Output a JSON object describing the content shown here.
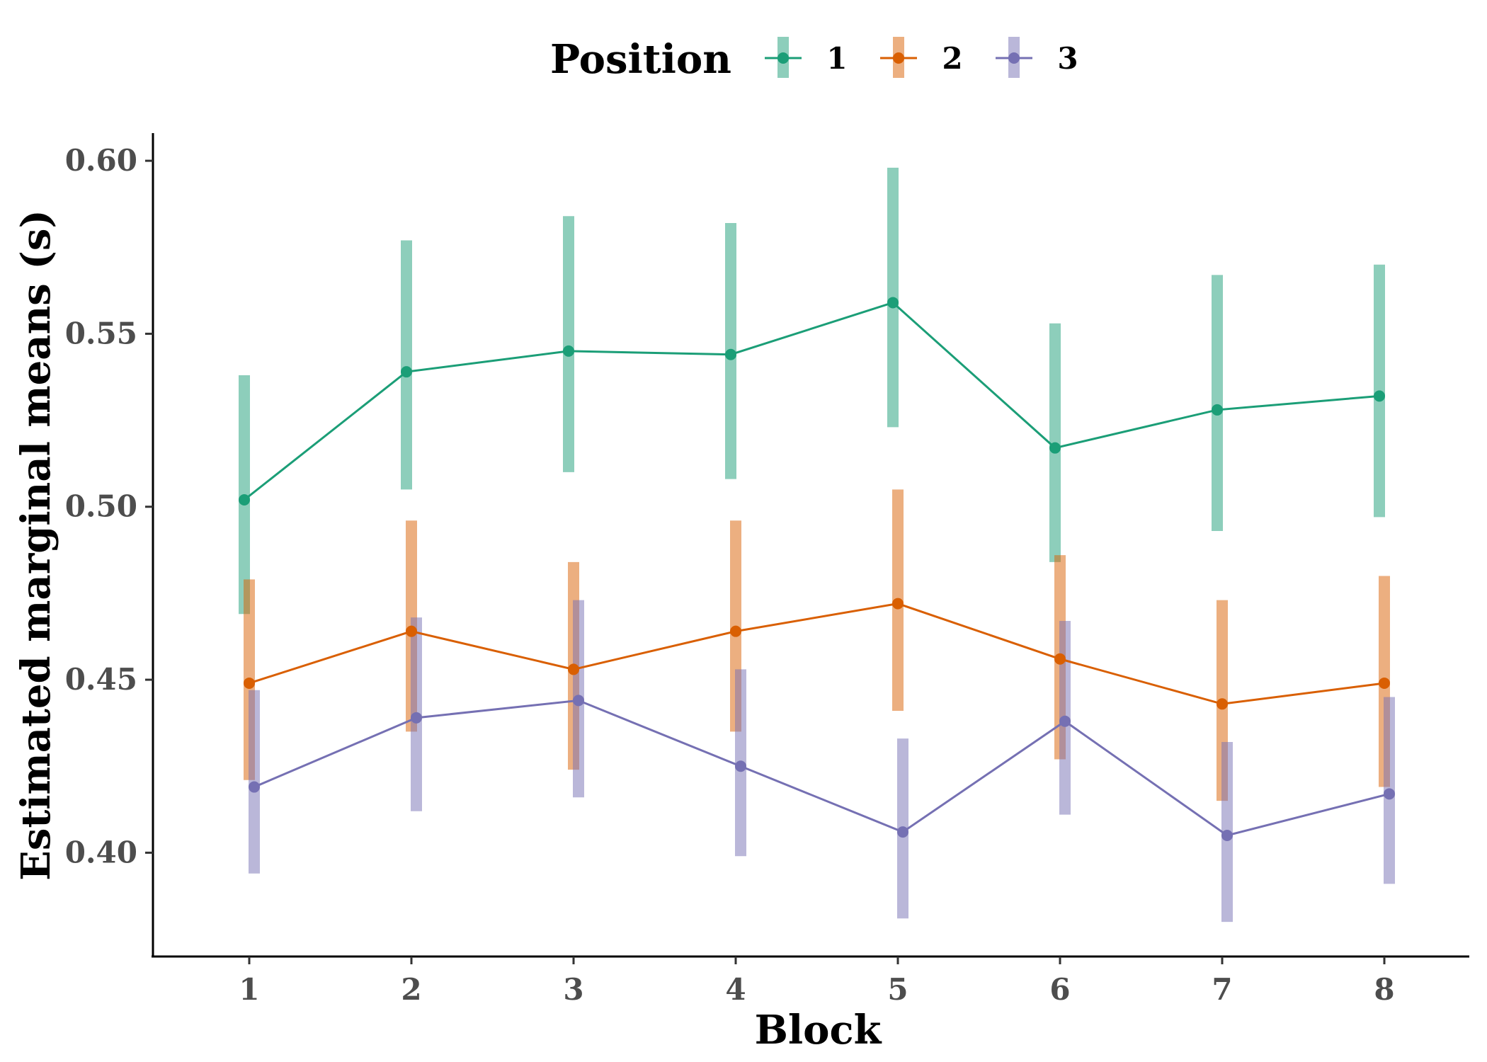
{
  "chart_data": {
    "type": "line",
    "xlabel": "Block",
    "ylabel": "Estimated marginal means (s)",
    "legend_title": "Position",
    "legend_position": "top",
    "grid": false,
    "categories": [
      "1",
      "2",
      "3",
      "4",
      "5",
      "6",
      "7",
      "8"
    ],
    "ylim": [
      0.37,
      0.608
    ],
    "yticks": [
      0.4,
      0.45,
      0.5,
      0.55,
      0.6
    ],
    "ytick_labels": [
      "0.40",
      "0.45",
      "0.50",
      "0.55",
      "0.60"
    ],
    "series": [
      {
        "name": "1",
        "color": "#1b9e77",
        "values": [
          0.502,
          0.539,
          0.545,
          0.544,
          0.559,
          0.517,
          0.528,
          0.532
        ],
        "lower": [
          0.469,
          0.505,
          0.51,
          0.508,
          0.523,
          0.484,
          0.493,
          0.497
        ],
        "upper": [
          0.538,
          0.577,
          0.584,
          0.582,
          0.598,
          0.553,
          0.567,
          0.57
        ]
      },
      {
        "name": "2",
        "color": "#d95f02",
        "values": [
          0.449,
          0.464,
          0.453,
          0.464,
          0.472,
          0.456,
          0.443,
          0.449
        ],
        "lower": [
          0.421,
          0.435,
          0.424,
          0.435,
          0.441,
          0.427,
          0.415,
          0.419
        ],
        "upper": [
          0.479,
          0.496,
          0.484,
          0.496,
          0.505,
          0.486,
          0.473,
          0.48
        ]
      },
      {
        "name": "3",
        "color": "#7570b3",
        "values": [
          0.419,
          0.439,
          0.444,
          0.425,
          0.406,
          0.438,
          0.405,
          0.417
        ],
        "lower": [
          0.394,
          0.412,
          0.416,
          0.399,
          0.381,
          0.411,
          0.38,
          0.391
        ],
        "upper": [
          0.447,
          0.468,
          0.473,
          0.453,
          0.433,
          0.467,
          0.432,
          0.445
        ]
      }
    ]
  }
}
